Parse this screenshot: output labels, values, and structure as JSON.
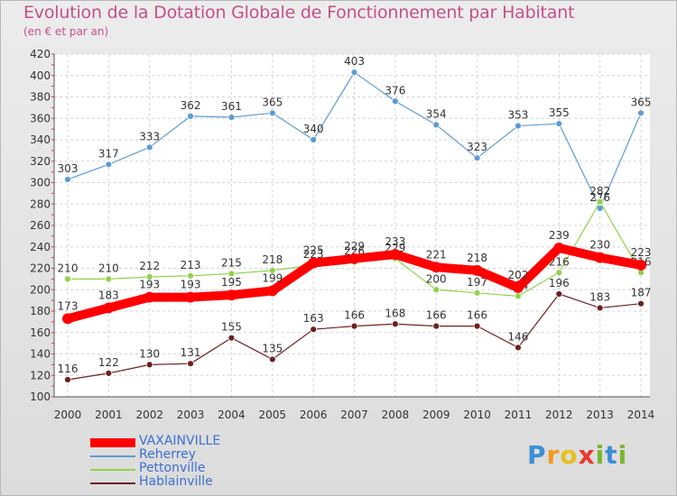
{
  "title": "Evolution de la Dotation Globale de Fonctionnement par Habitant",
  "subtitle": "(en € et par an)",
  "logo": {
    "text": "Proxiti",
    "letters": [
      "P",
      "r",
      "o",
      "x",
      "i",
      "t",
      "i"
    ]
  },
  "chart_data": {
    "type": "line",
    "title": "Evolution de la Dotation Globale de Fonctionnement par Habitant",
    "subtitle": "(en € et par an)",
    "x": [
      "2000",
      "2001",
      "2002",
      "2003",
      "2004",
      "2005",
      "2006",
      "2007",
      "2008",
      "2009",
      "2010",
      "2011",
      "2012",
      "2013",
      "2014"
    ],
    "ylim": [
      100,
      420
    ],
    "yticks": [
      "100",
      "120",
      "140",
      "160",
      "180",
      "200",
      "220",
      "240",
      "260",
      "280",
      "300",
      "320",
      "340",
      "360",
      "380",
      "400",
      "420"
    ],
    "grid": true,
    "legend_position": "bottom-left",
    "series": [
      {
        "name": "Reherrey",
        "color": "#5b9bd5",
        "values": [
          303,
          317,
          333,
          362,
          361,
          365,
          340,
          403,
          376,
          354,
          323,
          353,
          355,
          276,
          365
        ],
        "labels": [
          "303",
          "317",
          "333",
          "362",
          "361",
          "365",
          "340",
          "403",
          "376",
          "354",
          "323",
          "353",
          "355",
          "276",
          "365"
        ]
      },
      {
        "name": "Pettonville",
        "color": "#8fd24a",
        "values": [
          210,
          210,
          212,
          213,
          215,
          218,
          223,
          226,
          229,
          200,
          197,
          194,
          216,
          282,
          216
        ],
        "labels": [
          "210",
          "210",
          "212",
          "213",
          "215",
          "218",
          "223",
          "226",
          "229",
          "200",
          "197",
          "194",
          "216",
          "282",
          "216"
        ]
      },
      {
        "name": "Hablainville",
        "color": "#6e1e1e",
        "values": [
          116,
          122,
          130,
          131,
          155,
          135,
          163,
          166,
          168,
          166,
          166,
          146,
          196,
          183,
          187
        ],
        "labels": [
          "116",
          "122",
          "130",
          "131",
          "155",
          "135",
          "163",
          "166",
          "168",
          "166",
          "166",
          "146",
          "196",
          "183",
          "187"
        ]
      },
      {
        "name": "VAXAINVILLE",
        "color": "#ff0000",
        "values": [
          173,
          183,
          193,
          193,
          195,
          199,
          225,
          229,
          233,
          221,
          218,
          202,
          239,
          230,
          223
        ],
        "labels": [
          "173",
          "183",
          "193",
          "193",
          "195",
          "199",
          "225",
          "229",
          "233",
          "221",
          "218",
          "202",
          "239",
          "230",
          "223"
        ]
      }
    ],
    "legend": [
      {
        "name": "VAXAINVILLE",
        "color": "#ff0000"
      },
      {
        "name": "Reherrey",
        "color": "#5b9bd5"
      },
      {
        "name": "Pettonville",
        "color": "#8fd24a"
      },
      {
        "name": "Hablainville",
        "color": "#6e1e1e"
      }
    ]
  }
}
